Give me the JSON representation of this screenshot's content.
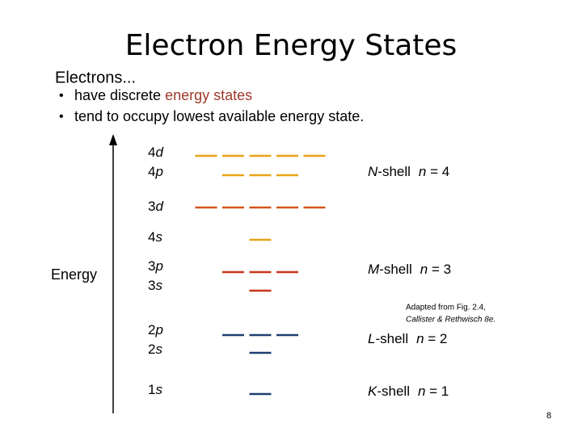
{
  "title": "Electron Energy States",
  "intro": "Electrons...",
  "bullets": [
    {
      "parts": [
        "have discrete ",
        "energy states"
      ]
    },
    {
      "parts": [
        "tend to occupy lowest available energy state."
      ]
    }
  ],
  "axis_label": "Energy",
  "levels": [
    {
      "n": "4",
      "l": "d",
      "orbitals": 5,
      "color": "#e8a317"
    },
    {
      "n": "4",
      "l": "p",
      "orbitals": 3,
      "color": "#e8a317"
    },
    {
      "n": "3",
      "l": "d",
      "orbitals": 5,
      "color": "#d4541c"
    },
    {
      "n": "4",
      "l": "s",
      "orbitals": 1,
      "color": "#e8a317"
    },
    {
      "n": "3",
      "l": "p",
      "orbitals": 3,
      "color": "#c8361a"
    },
    {
      "n": "3",
      "l": "s",
      "orbitals": 1,
      "color": "#c8361a"
    },
    {
      "n": "2",
      "l": "p",
      "orbitals": 3,
      "color": "#1f3f70"
    },
    {
      "n": "2",
      "l": "s",
      "orbitals": 1,
      "color": "#1f3f70"
    },
    {
      "n": "1",
      "l": "s",
      "orbitals": 1,
      "color": "#1f3f70"
    }
  ],
  "shells": [
    {
      "letter": "N",
      "suffix": "-shell",
      "var": "n",
      "value": " = 4"
    },
    {
      "letter": "M",
      "suffix": "-shell",
      "var": "n",
      "value": " = 3"
    },
    {
      "letter": "L",
      "suffix": "-shell",
      "var": "n",
      "value": " = 2"
    },
    {
      "letter": "K",
      "suffix": "-shell",
      "var": "n",
      "value": " = 1"
    }
  ],
  "citation": [
    "Adapted from Fig. 2.4,",
    "Callister & Rethwisch 8e."
  ],
  "page_number": "8"
}
